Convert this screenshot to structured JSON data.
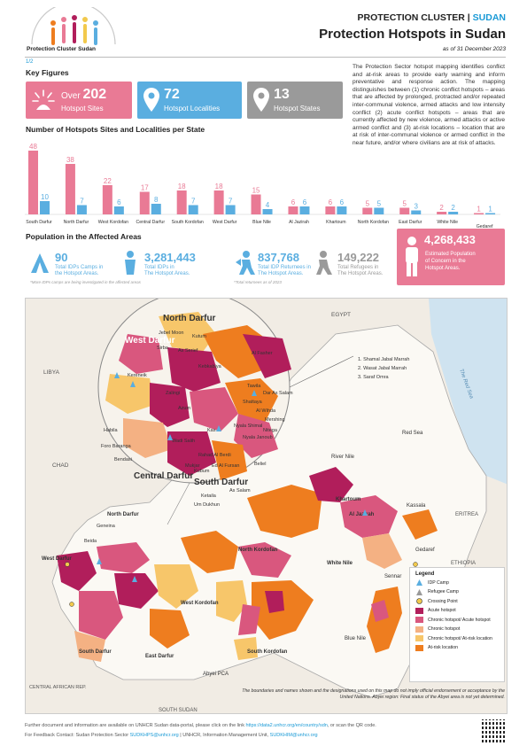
{
  "header": {
    "org": "Protection Cluster Sudan",
    "cluster_prefix": "PROTECTION CLUSTER | ",
    "cluster_country": "SUDAN",
    "title": "Protection Hotspots in Sudan",
    "date": "as of 31 December 2023"
  },
  "page_num": "1/2",
  "key_figures": {
    "title": "Key Figures",
    "boxes": [
      {
        "prefix": "Over ",
        "value": "202",
        "label": "Hotspot Sites",
        "color": "#e97a95",
        "icon": "burst-icon"
      },
      {
        "prefix": "",
        "value": "72",
        "label": "Hotspot Localities",
        "color": "#5aaee0",
        "icon": "map-pin-icon"
      },
      {
        "prefix": "",
        "value": "13",
        "label": "Hotspot States",
        "color": "#9a9a9a",
        "icon": "map-pin-icon"
      }
    ]
  },
  "intro": "The Protection Sector hotspot mapping identifies conflict and at-risk areas to provide early warning and inform preventative and response action. The mapping distinguishes between (1) chronic conflict hotspots – areas that are affected by prolonged, protracted and/or repeated inter-communal violence, armed attacks and low intensity conflict (2) acute conflict hotspots – areas that are currently affected by new violence, armed attacks or active armed conflict and (3) at-risk locations – location that are at risk of inter-communal violence or armed conflict in the near future, and/or where civilians are at risk of attacks.",
  "chart_title": "Number of Hotspots Sites and Localities per State",
  "chart_data": {
    "type": "bar",
    "categories": [
      "South Darfur",
      "North Darfur",
      "West Kordofan",
      "Central Darfur",
      "South Kordofan",
      "West Darfur",
      "Blue Nile",
      "Al Jazirah",
      "Khartoum",
      "North Kordofan",
      "East Darfur",
      "White Nile",
      "Gedaref"
    ],
    "series": [
      {
        "name": "Sites",
        "color": "#e97a95",
        "values": [
          48,
          38,
          22,
          17,
          18,
          18,
          15,
          6,
          6,
          5,
          5,
          2,
          1
        ]
      },
      {
        "name": "Localities",
        "color": "#5aaee0",
        "values": [
          10,
          7,
          6,
          8,
          7,
          7,
          4,
          6,
          6,
          5,
          3,
          2,
          1
        ]
      }
    ]
  },
  "population": {
    "title": "Population in the Affected Areas",
    "items": [
      {
        "value": "90",
        "label1": "Total IDPs Camps in",
        "label2": "the Hotspot Areas.",
        "note": "*More IDPs camps are being investigated in the affected areas",
        "icon": "camp-icon"
      },
      {
        "value": "3,281,443",
        "label1": "Total IDPs in",
        "label2": "The Hotspot Areas.",
        "note": "",
        "icon": "idp-icon"
      },
      {
        "value": "837,768",
        "label1": "Total IDP Returnees in",
        "label2": "The Hotspot Areas.",
        "note": "*Total returnees as of 2023",
        "icon": "returnee-icon"
      },
      {
        "value": "149,222",
        "label1": "Total Refugees in",
        "label2": "The Hotspot Areas.",
        "note": "",
        "icon": "refugee-icon"
      }
    ],
    "concern": {
      "value": "4,268,433",
      "label1": "Estimated Population",
      "label2": "of Concern in the",
      "label3": "Hotspot Areas."
    }
  },
  "map": {
    "countries": {
      "libya": "LIBYA",
      "egypt": "EGYPT",
      "chad": "CHAD",
      "car": "CENTRAL AFRICAN REP.",
      "south_sudan": "SOUTH SUDAN",
      "ethiopia": "ETHIOPIA",
      "eritrea": "ERITREA"
    },
    "seas": {
      "red_sea": "Red Sea",
      "red_sea_water": "The Red Sea"
    },
    "inset_states": {
      "north_darfur": "North Darfur",
      "west_darfur": "West Darfur",
      "central_darfur": "Central Darfur",
      "south_darfur": "South Darfur"
    },
    "inset_places": [
      "Kutum",
      "As Serief",
      "Jebel Moon",
      "Sirba",
      "Kebkabiya",
      "Al Fasher",
      "Kereneik",
      "Tawila",
      "Zalingi",
      "Dar As Salam",
      "Azum",
      "Al Wihda",
      "Shattaya",
      "Kas",
      "Nyala Shimal",
      "Nyala Janoub",
      "Mershing",
      "Nitega",
      "Habila",
      "Foro Baranga",
      "Wadi Salih",
      "Bendasi",
      "Mukjar",
      "Beliel",
      "Rahad Al Berdi",
      "Ketaila",
      "As Salam",
      "Um Dukhun",
      "Kubum",
      "Ed Al Fursan",
      "Geneina",
      "Beida"
    ],
    "state_labels": {
      "north_darfur": "North Darfur",
      "north_kordofan": "North Kordofan",
      "west_kordofan": "West Kordofan",
      "south_kordofan": "South Kordofan",
      "east_darfur": "East Darfur",
      "south_darfur": "South Darfur",
      "central_darfur": "Central Darfur",
      "west_darfur": "West Darfur",
      "river_nile": "River Nile",
      "khartoum": "Khartoum",
      "gezira": "Al Jazirah",
      "white_nile": "White Nile",
      "sennar": "Sennar",
      "blue_nile": "Blue Nile",
      "kassala": "Kassala",
      "gedaref": "Gedaref",
      "red_sea": "Red Sea",
      "abyei": "Abyei PCA"
    },
    "callout": [
      "1. Shamal Jabal Marrah",
      "2. Wasat Jabal Marrah",
      "3. Saraf Omra"
    ]
  },
  "legend": {
    "title": "Legend",
    "items": [
      {
        "label": "IDP Camp",
        "kind": "idp",
        "color": "#5aaee0"
      },
      {
        "label": "Refugee Camp",
        "kind": "refugee",
        "color": "#9a9a9a"
      },
      {
        "label": "Crossing Point",
        "kind": "crossing",
        "color": "#f2c94c"
      },
      {
        "label": "Acute hotspot",
        "kind": "fill",
        "color": "#b11e5b"
      },
      {
        "label": "Chronic hotspot/ Acute hotspot",
        "kind": "fill",
        "color": "#d9577e"
      },
      {
        "label": "Chronic hotspot",
        "kind": "fill",
        "color": "#f4b183"
      },
      {
        "label": "Chronic hotspot/ At-risk location",
        "kind": "fill",
        "color": "#f7c66a"
      },
      {
        "label": "At-risk location",
        "kind": "fill",
        "color": "#ee7d1f"
      }
    ]
  },
  "disclaimer": "The boundaries and names shown and the designations used on this map do not imply official endorsement or acceptance by the United Nations. Abyei region: Final status of the Abyei area is not yet determined.",
  "footer": {
    "line1_pre": "Further document and information are available on UNHCR Sudan data-portal, please click on the link ",
    "line1_link": "https://data2.unhcr.org/en/country/sdn",
    "line1_post": ", or scan the QR code.",
    "line2_pre": "For Feedback Contact: Sudan Protection Sector ",
    "line2_link1": "SUDKHPS@unhcr.org",
    "line2_mid": " | UNHCR, Information Management Unit, ",
    "line2_link2": "SUDKHIM@unhcr.org"
  }
}
